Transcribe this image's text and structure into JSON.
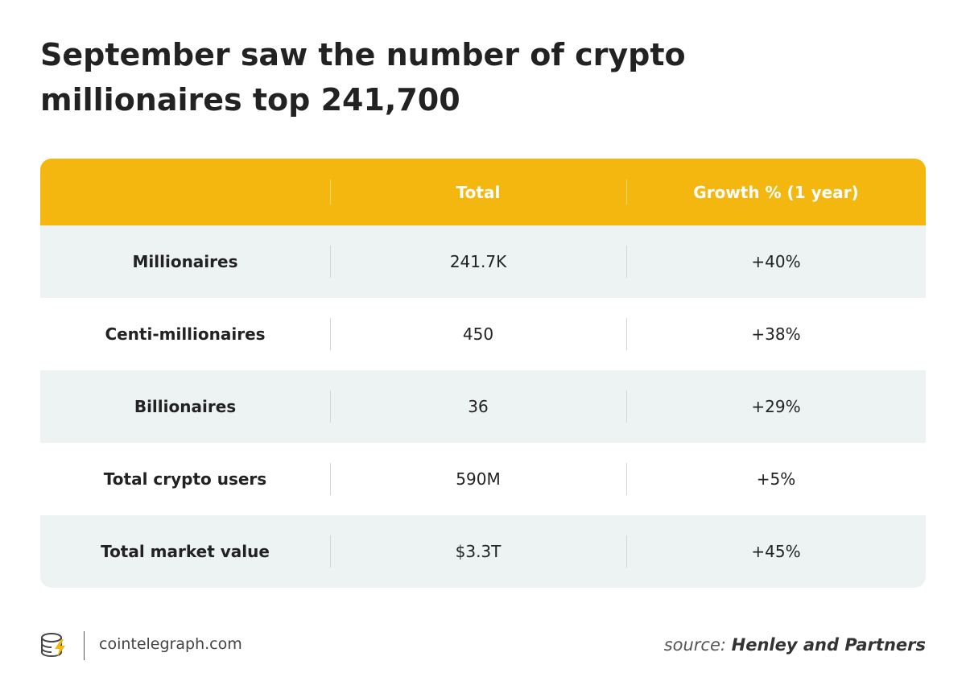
{
  "header": {
    "title": "September saw the number of crypto millionaires top 241,700"
  },
  "table": {
    "columns": [
      "Total",
      "Growth % (1 year)"
    ],
    "rows": [
      [
        "Millionaires",
        "241.7K",
        "+40%"
      ],
      [
        "Centi-millionaires",
        "450",
        "+38%"
      ],
      [
        "Billionaires",
        "36",
        "+29%"
      ],
      [
        "Total crypto users",
        "590M",
        "+5%"
      ],
      [
        "Total market value",
        "$3.3T",
        "+45%"
      ]
    ]
  },
  "footer": {
    "brand": "cointelegraph.com",
    "source_prefix": "source:",
    "source": "Henley and Partners"
  }
}
